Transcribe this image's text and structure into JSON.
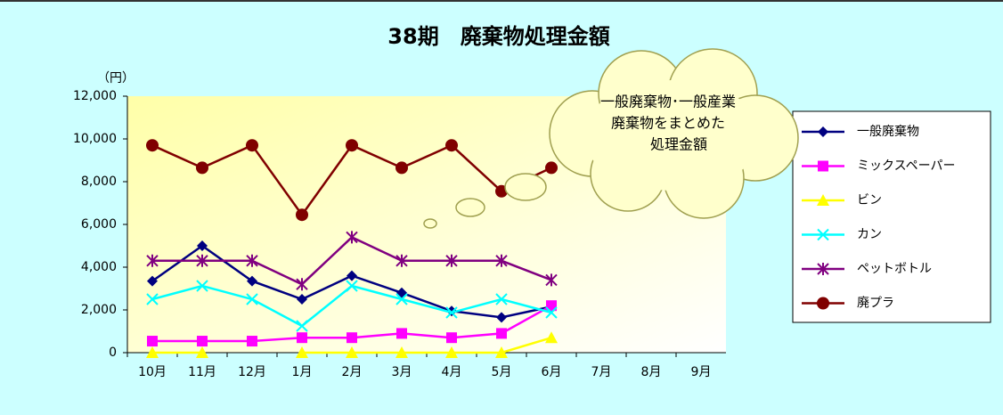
{
  "chart_data": {
    "type": "line",
    "title": "38期　廃棄物処理金額",
    "y_unit": "（円）",
    "categories": [
      "10月",
      "11月",
      "12月",
      "1月",
      "2月",
      "3月",
      "4月",
      "5月",
      "6月",
      "7月",
      "8月",
      "9月"
    ],
    "series": [
      {
        "name": "一般廃棄物",
        "color": "#000080",
        "marker": "diamond",
        "values": [
          3350,
          5000,
          3350,
          2500,
          3600,
          2800,
          1950,
          1650,
          2150,
          null,
          null,
          null
        ]
      },
      {
        "name": "ミックスペーパー",
        "color": "#ff00ff",
        "marker": "square",
        "values": [
          540,
          540,
          540,
          700,
          700,
          900,
          700,
          900,
          2200,
          null,
          null,
          null
        ]
      },
      {
        "name": "ビン",
        "color": "#ffff00",
        "marker": "triangle",
        "values": [
          0,
          0,
          null,
          0,
          0,
          0,
          0,
          0,
          700,
          null,
          null,
          null
        ]
      },
      {
        "name": "カン",
        "color": "#00ffff",
        "marker": "x",
        "values": [
          2500,
          3125,
          2500,
          1250,
          3125,
          2500,
          1875,
          2500,
          1875,
          null,
          null,
          null
        ]
      },
      {
        "name": "ペットボトル",
        "color": "#800080",
        "marker": "asterisk",
        "values": [
          4300,
          4300,
          4300,
          3200,
          5400,
          4300,
          4300,
          4300,
          3400,
          null,
          null,
          null
        ]
      },
      {
        "name": "廃プラ",
        "color": "#800000",
        "marker": "circle",
        "values": [
          9700,
          8650,
          9700,
          6450,
          9700,
          8650,
          9700,
          7550,
          8650,
          null,
          null,
          null
        ]
      }
    ],
    "ylim": [
      0,
      12000
    ],
    "yticks": [
      0,
      {
        "value": 2000,
        "label": "2,000"
      },
      {
        "value": 4000,
        "label": "4,000"
      },
      {
        "value": 6000,
        "label": "6,000"
      },
      {
        "value": 8000,
        "label": "8,000"
      },
      {
        "value": 10000,
        "label": "10,000"
      },
      {
        "value": 12000,
        "label": "12,000"
      }
    ],
    "annotation": [
      "一般廃棄物･一般産業",
      "廃棄物をまとめた",
      "処理金額"
    ],
    "legend": "right"
  }
}
